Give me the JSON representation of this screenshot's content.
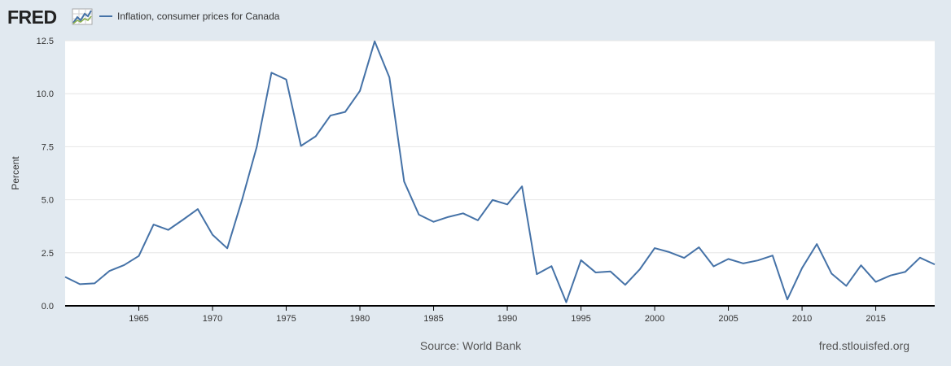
{
  "header": {
    "logo_text": "FRED",
    "legend_label": "Inflation, consumer prices for Canada"
  },
  "footer": {
    "source": "Source: World Bank",
    "site": "fred.stlouisfed.org"
  },
  "colors": {
    "background": "#e1e9f0",
    "plot_background": "#ffffff",
    "series": "#4572a7",
    "grid": "#e6e6e6",
    "axis": "#000000"
  },
  "chart_data": {
    "type": "line",
    "title": "",
    "xlabel": "",
    "ylabel": "Percent",
    "xlim": [
      1960,
      2019
    ],
    "ylim": [
      0,
      12.5
    ],
    "yticks": [
      0.0,
      2.5,
      5.0,
      7.5,
      10.0,
      12.5
    ],
    "ytick_labels": [
      "0.0",
      "2.5",
      "5.0",
      "7.5",
      "10.0",
      "12.5"
    ],
    "xticks": [
      1965,
      1970,
      1975,
      1980,
      1985,
      1990,
      1995,
      2000,
      2005,
      2010,
      2015
    ],
    "xtick_labels": [
      "1965",
      "1970",
      "1975",
      "1980",
      "1985",
      "1990",
      "1995",
      "2000",
      "2005",
      "2010",
      "2015"
    ],
    "grid": true,
    "legend": "top-left",
    "series": [
      {
        "x": [
          1960,
          1961,
          1962,
          1963,
          1964,
          1965,
          1966,
          1967,
          1968,
          1969,
          1970,
          1971,
          1972,
          1973,
          1974,
          1975,
          1976,
          1977,
          1978,
          1979,
          1980,
          1981,
          1982,
          1983,
          1984,
          1985,
          1986,
          1987,
          1988,
          1989,
          1990,
          1991,
          1992,
          1993,
          1994,
          1995,
          1996,
          1997,
          1998,
          1999,
          2000,
          2001,
          2002,
          2003,
          2004,
          2005,
          2006,
          2007,
          2008,
          2009,
          2010,
          2011,
          2012,
          2013,
          2014,
          2015,
          2016,
          2017,
          2018,
          2019
        ],
        "values": [
          1.36,
          1.02,
          1.06,
          1.64,
          1.92,
          2.35,
          3.83,
          3.58,
          4.06,
          4.56,
          3.35,
          2.71,
          4.99,
          7.49,
          10.99,
          10.67,
          7.54,
          7.99,
          8.97,
          9.14,
          10.13,
          12.47,
          10.77,
          5.86,
          4.3,
          3.96,
          4.19,
          4.36,
          4.03,
          4.99,
          4.78,
          5.63,
          1.49,
          1.87,
          0.17,
          2.15,
          1.57,
          1.62,
          0.99,
          1.73,
          2.72,
          2.53,
          2.26,
          2.76,
          1.86,
          2.21,
          2.0,
          2.14,
          2.37,
          0.3,
          1.78,
          2.91,
          1.52,
          0.94,
          1.91,
          1.13,
          1.43,
          1.6,
          2.27,
          1.95
        ]
      }
    ]
  }
}
